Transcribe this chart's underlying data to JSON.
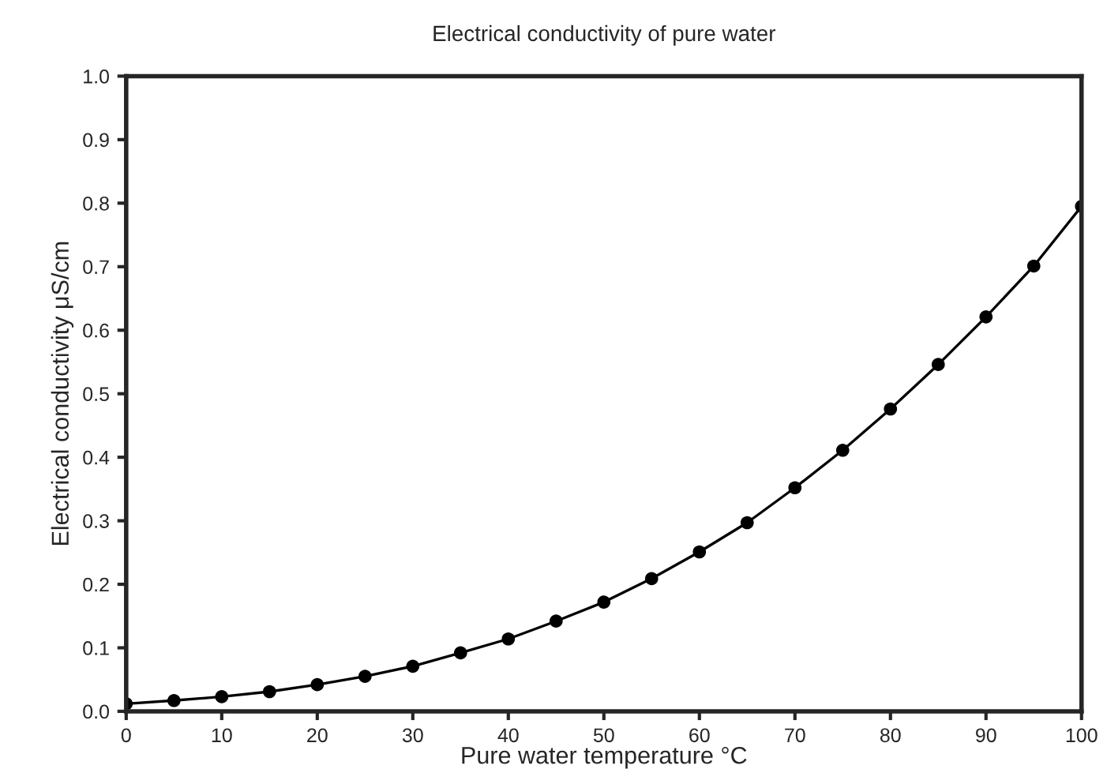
{
  "chart_data": {
    "type": "line",
    "title": "Electrical conductivity of pure water",
    "xlabel": "Pure water temperature °C",
    "ylabel": "Electrical conductivity μS/cm",
    "x": [
      0,
      5,
      10,
      15,
      20,
      25,
      30,
      35,
      40,
      45,
      50,
      55,
      60,
      65,
      70,
      75,
      80,
      85,
      90,
      95,
      100
    ],
    "series": [
      {
        "color": "#000000",
        "values": [
          0.012,
          0.017,
          0.023,
          0.031,
          0.042,
          0.055,
          0.071,
          0.092,
          0.114,
          0.142,
          0.172,
          0.209,
          0.251,
          0.297,
          0.352,
          0.411,
          0.476,
          0.546,
          0.621,
          0.701,
          0.795
        ]
      }
    ],
    "xlim": [
      0,
      100
    ],
    "xticks": [
      0,
      10,
      20,
      30,
      40,
      50,
      60,
      70,
      80,
      90,
      100
    ],
    "ylim": [
      0,
      1.0
    ],
    "yticks": [
      {
        "value": 0,
        "label": "0.0"
      },
      0.1,
      0.2,
      0.3,
      0.4,
      0.5,
      0.6,
      0.7,
      0.8,
      0.9,
      {
        "value": 1.0,
        "label": "1.0"
      }
    ],
    "marker": "circle",
    "line_style": "solid",
    "grid": false,
    "legend": false
  }
}
